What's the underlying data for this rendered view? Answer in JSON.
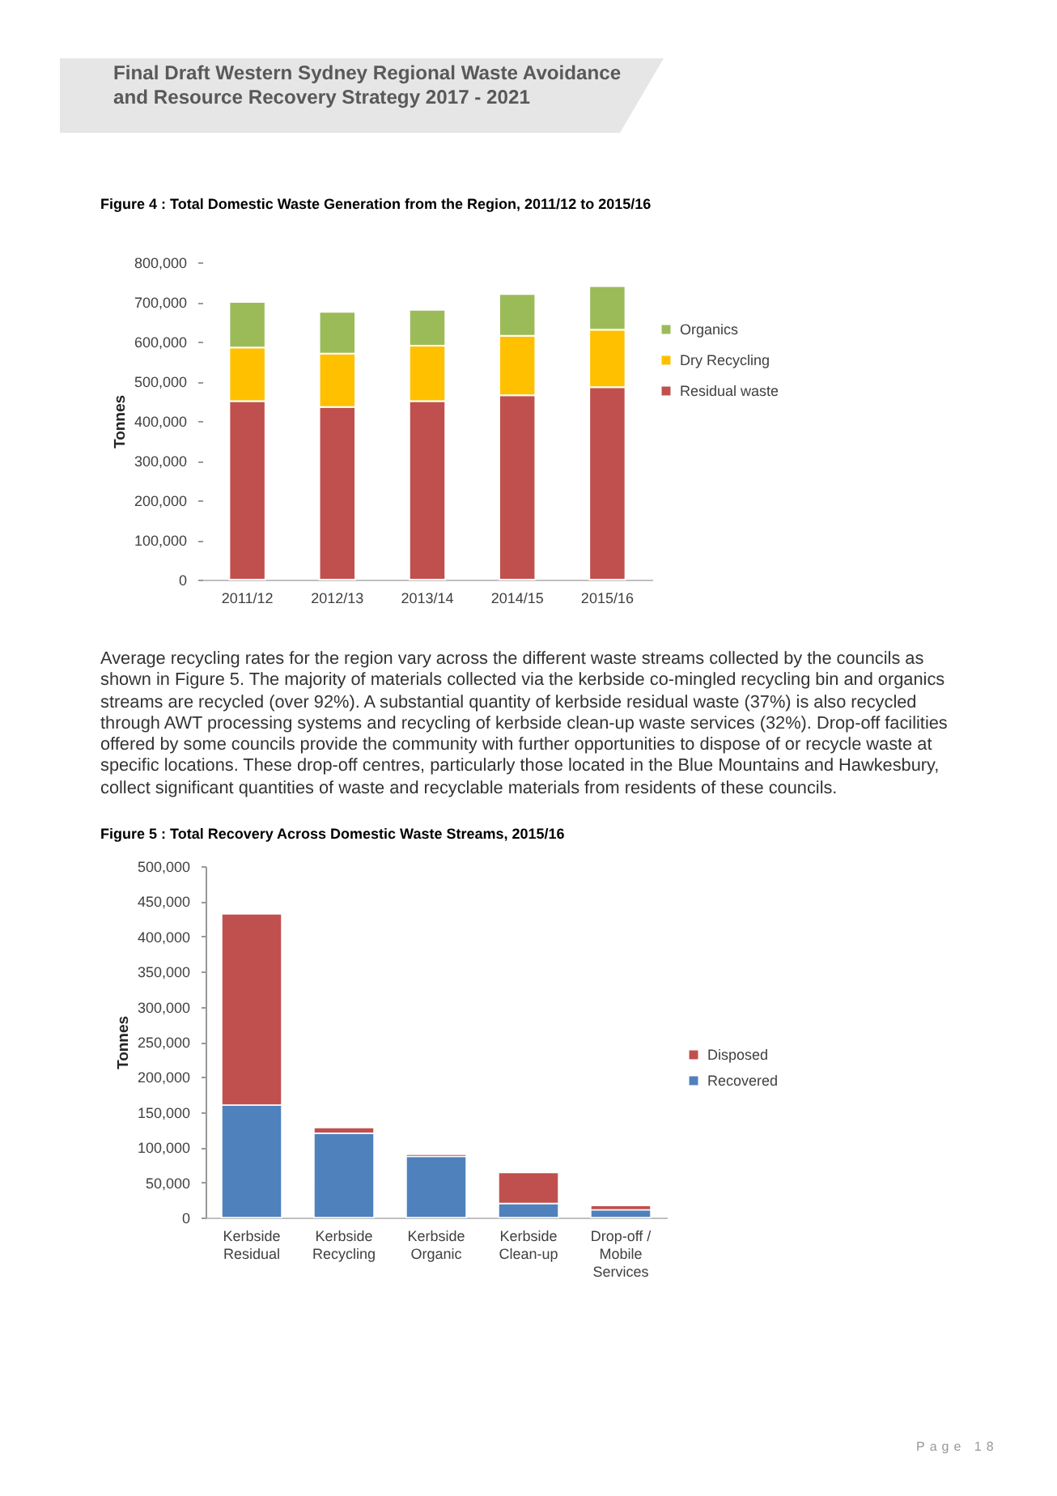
{
  "chart_data": [
    {
      "type": "bar",
      "title": "Figure 4 : Total Domestic Waste Generation from the Region, 2011/12 to 2015/16",
      "ylabel": "Tonnes",
      "categories": [
        "2011/12",
        "2012/13",
        "2013/14",
        "2014/15",
        "2015/16"
      ],
      "stacked": true,
      "series": [
        {
          "name": "Residual waste",
          "color": "#c0504d",
          "values": [
            450000,
            435000,
            450000,
            465000,
            485000
          ]
        },
        {
          "name": "Dry Recycling",
          "color": "#ffc000",
          "values": [
            135000,
            135000,
            140000,
            150000,
            145000
          ]
        },
        {
          "name": "Organics",
          "color": "#9bbb59",
          "values": [
            115000,
            105000,
            90000,
            105000,
            110000
          ]
        }
      ],
      "ylim": [
        0,
        800000
      ],
      "yticks": [
        {
          "value": 0,
          "label": "0"
        },
        {
          "value": 100000,
          "label": "100,000"
        },
        {
          "value": 200000,
          "label": "200,000"
        },
        {
          "value": 300000,
          "label": "300,000"
        },
        {
          "value": 400000,
          "label": "400,000"
        },
        {
          "value": 500000,
          "label": "500,000"
        },
        {
          "value": 600000,
          "label": "600,000"
        },
        {
          "value": 700000,
          "label": "700,000"
        },
        {
          "value": 800000,
          "label": "800,000"
        }
      ],
      "legend": "right",
      "annotations": [
        "Final Draft Western Sydney Regional Waste Avoidance and Resource Recovery Strategy 2017 - 2021"
      ]
    },
    {
      "type": "bar",
      "title": "Figure 5 : Total Recovery Across Domestic Waste Streams, 2015/16",
      "ylabel": "Tonnes",
      "categories": [
        "Kerbside Residual",
        "Kerbside Recycling",
        "Kerbside Organic",
        "Kerbside Clean-up",
        "Drop-off / Mobile Services"
      ],
      "stacked": true,
      "series": [
        {
          "name": "Recovered",
          "color": "#4f81bd",
          "values": [
            160000,
            120000,
            87000,
            20000,
            11000
          ]
        },
        {
          "name": "Disposed",
          "color": "#c0504d",
          "values": [
            272000,
            8000,
            3000,
            44000,
            6000
          ]
        }
      ],
      "ylim": [
        0,
        500000
      ],
      "yticks": [
        {
          "value": 0,
          "label": "0"
        },
        {
          "value": 50000,
          "label": "50,000"
        },
        {
          "value": 100000,
          "label": "100,000"
        },
        {
          "value": 150000,
          "label": "150,000"
        },
        {
          "value": 200000,
          "label": "200,000"
        },
        {
          "value": 250000,
          "label": "250,000"
        },
        {
          "value": 300000,
          "label": "300,000"
        },
        {
          "value": 350000,
          "label": "350,000"
        },
        {
          "value": 400000,
          "label": "400,000"
        },
        {
          "value": 450000,
          "label": "450,000"
        },
        {
          "value": 500000,
          "label": "500,000"
        }
      ],
      "legend": "right",
      "annotations": [
        "Average recycling rates for the region vary across the different waste streams collected by the councils as shown in Figure 5. The majority of materials collected via the kerbside co-mingled recycling bin and organics streams are recycled (over 92%). A substantial quantity of kerbside residual waste (37%) is also recycled through AWT processing systems and recycling of kerbside clean-up waste services (32%). Drop-off facilities offered by some councils provide the community with further opportunities to dispose of or recycle waste at specific locations. These drop-off centres, particularly those located in the Blue Mountains and Hawkesbury, collect significant quantities of waste and recyclable materials from residents of these councils.",
        "Page 18"
      ]
    }
  ]
}
